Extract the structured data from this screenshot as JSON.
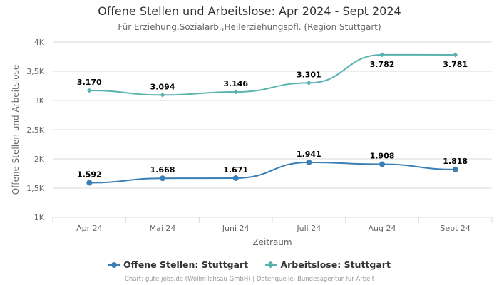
{
  "chart_data": {
    "type": "line",
    "title": "Offene Stellen und Arbeitslose: Apr 2024 - Sept 2024",
    "subtitle": "Für Erziehung,Sozialarb.,Heilerziehungspfl. (Region Stuttgart)",
    "xlabel": "Zeitraum",
    "ylabel": "Offene Stellen und Arbeitslose",
    "categories": [
      "Apr 24",
      "Mai 24",
      "Juni 24",
      "Juli 24",
      "Aug 24",
      "Sept 24"
    ],
    "ylim": [
      1000,
      4000
    ],
    "yticks": [
      {
        "value": 1000,
        "label": "1K"
      },
      {
        "value": 1500,
        "label": "1,5K"
      },
      {
        "value": 2000,
        "label": "2K"
      },
      {
        "value": 2500,
        "label": "2,5K"
      },
      {
        "value": 3000,
        "label": "3K"
      },
      {
        "value": 3500,
        "label": "3,5K"
      },
      {
        "value": 4000,
        "label": "4K"
      }
    ],
    "grid": true,
    "legend_position": "bottom-center",
    "series": [
      {
        "name": "Offene Stellen: Stuttgart",
        "values": [
          1592,
          1668,
          1671,
          1941,
          1908,
          1818
        ],
        "labels": [
          "1.592",
          "1.668",
          "1.671",
          "1.941",
          "1.908",
          "1.818"
        ],
        "color": "#3a7fb6",
        "marker": "circle"
      },
      {
        "name": "Arbeitslose: Stuttgart",
        "values": [
          3170,
          3094,
          3146,
          3301,
          3782,
          3781
        ],
        "labels": [
          "3.170",
          "3.094",
          "3.146",
          "3.301",
          "3.782",
          "3.781"
        ],
        "color": "#5bb3b0",
        "marker": "diamond"
      }
    ]
  },
  "credits": "Chart: gute-jobs.de (Wollmilchsau GmbH) | Datenquelle: Bundesagentur für Arbeit"
}
